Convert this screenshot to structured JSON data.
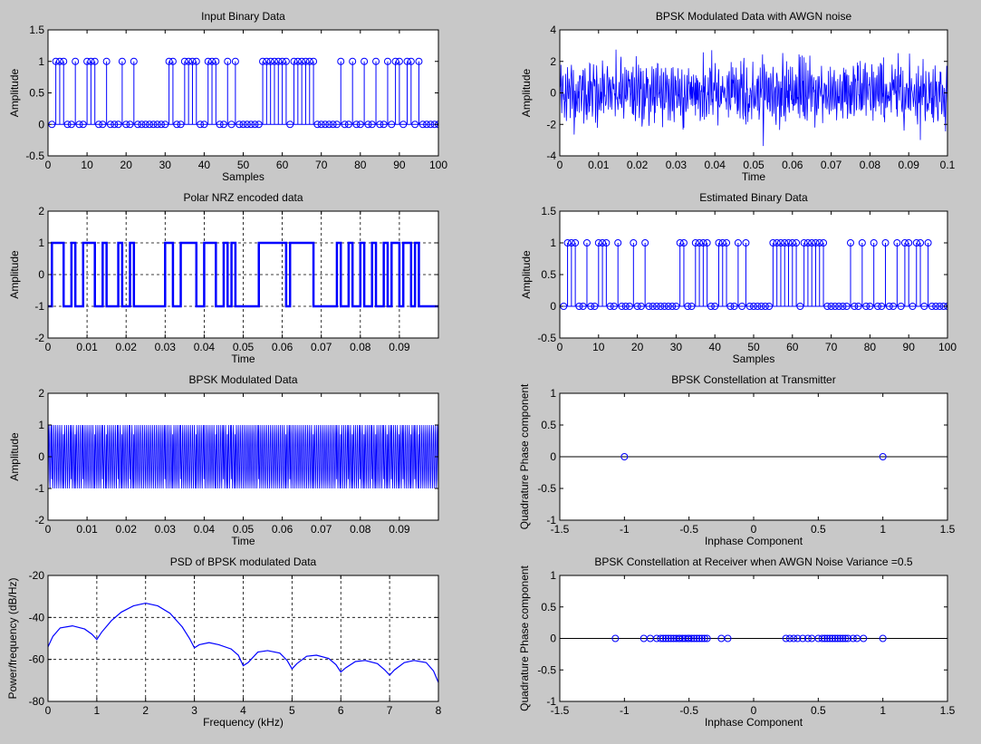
{
  "window": {
    "background": "#c8c8c8"
  },
  "colors": {
    "series": "#0000ff",
    "axes": "#000000",
    "plot_bg": "#ffffff",
    "grid": "#000000"
  },
  "chart_data": [
    {
      "id": "input-binary",
      "type": "stem",
      "title": "Input Binary Data",
      "xlabel": "Samples",
      "ylabel": "Amplitude",
      "xlim": [
        0,
        100
      ],
      "ylim": [
        -0.5,
        1.5
      ],
      "xticks": [
        0,
        10,
        20,
        30,
        40,
        50,
        60,
        70,
        80,
        90,
        100
      ],
      "yticks": [
        -0.5,
        0,
        0.5,
        1,
        1.5
      ],
      "xtick_labels": [
        "0",
        "10",
        "20",
        "30",
        "40",
        "50",
        "60",
        "70",
        "80",
        "90",
        "100"
      ],
      "ytick_labels": [
        "-0.5",
        "0",
        "0.5",
        "1",
        "1.5"
      ],
      "grid": false,
      "baseline": 0,
      "x": [
        1,
        2,
        3,
        4,
        5,
        6,
        7,
        8,
        9,
        10,
        11,
        12,
        13,
        14,
        15,
        16,
        17,
        18,
        19,
        20,
        21,
        22,
        23,
        24,
        25,
        26,
        27,
        28,
        29,
        30,
        31,
        32,
        33,
        34,
        35,
        36,
        37,
        38,
        39,
        40,
        41,
        42,
        43,
        44,
        45,
        46,
        47,
        48,
        49,
        50,
        51,
        52,
        53,
        54,
        55,
        56,
        57,
        58,
        59,
        60,
        61,
        62,
        63,
        64,
        65,
        66,
        67,
        68,
        69,
        70,
        71,
        72,
        73,
        74,
        75,
        76,
        77,
        78,
        79,
        80,
        81,
        82,
        83,
        84,
        85,
        86,
        87,
        88,
        89,
        90,
        91,
        92,
        93,
        94,
        95,
        96,
        97,
        98,
        99,
        100
      ],
      "values": [
        0,
        1,
        1,
        1,
        0,
        0,
        1,
        0,
        0,
        1,
        1,
        1,
        0,
        0,
        1,
        0,
        0,
        0,
        1,
        0,
        0,
        1,
        0,
        0,
        0,
        0,
        0,
        0,
        0,
        0,
        1,
        1,
        0,
        0,
        1,
        1,
        1,
        1,
        0,
        0,
        1,
        1,
        1,
        0,
        0,
        1,
        0,
        1,
        0,
        0,
        0,
        0,
        0,
        0,
        1,
        1,
        1,
        1,
        1,
        1,
        1,
        0,
        1,
        1,
        1,
        1,
        1,
        1,
        0,
        0,
        0,
        0,
        0,
        0,
        1,
        0,
        0,
        1,
        0,
        0,
        1,
        0,
        0,
        1,
        0,
        0,
        1,
        0,
        1,
        1,
        0,
        1,
        1,
        0,
        1,
        0,
        0,
        0,
        0,
        0
      ]
    },
    {
      "id": "bpsk-awgn",
      "type": "line",
      "title": "BPSK Modulated Data with AWGN noise",
      "xlabel": "Time",
      "ylabel": "Amplitude",
      "xlim": [
        0,
        0.1
      ],
      "ylim": [
        -4,
        4
      ],
      "xticks": [
        0,
        0.01,
        0.02,
        0.03,
        0.04,
        0.05,
        0.06,
        0.07,
        0.08,
        0.09,
        0.1
      ],
      "yticks": [
        -4,
        -2,
        0,
        2,
        4
      ],
      "xtick_labels": [
        "0",
        "0.01",
        "0.02",
        "0.03",
        "0.04",
        "0.05",
        "0.06",
        "0.07",
        "0.08",
        "0.09",
        "0.1"
      ],
      "ytick_labels": [
        "-4",
        "-2",
        "0",
        "2",
        "4"
      ],
      "grid": false,
      "signal": {
        "description_of_source": "bpsk",
        "carrier_cycles_per_bit": 2,
        "noise_std": 0.7,
        "samples": 1000
      }
    },
    {
      "id": "polar-nrz",
      "type": "step",
      "title": "Polar NRZ encoded data",
      "xlabel": "Time",
      "ylabel": "Amplitude",
      "xlim": [
        0,
        0.1
      ],
      "ylim": [
        -2,
        2
      ],
      "xticks": [
        0,
        0.01,
        0.02,
        0.03,
        0.04,
        0.05,
        0.06,
        0.07,
        0.08,
        0.09
      ],
      "yticks": [
        -2,
        -1,
        0,
        1,
        2
      ],
      "xtick_labels": [
        "0",
        "0.01",
        "0.02",
        "0.03",
        "0.04",
        "0.05",
        "0.06",
        "0.07",
        "0.08",
        "0.09"
      ],
      "ytick_labels": [
        "-2",
        "-1",
        "0",
        "1",
        "2"
      ],
      "grid": true,
      "bit_period": 0.001
    },
    {
      "id": "estimated-binary",
      "type": "stem",
      "title": "Estimated Binary Data",
      "xlabel": "Samples",
      "ylabel": "Amplitude",
      "xlim": [
        0,
        100
      ],
      "ylim": [
        -0.5,
        1.5
      ],
      "xticks": [
        0,
        10,
        20,
        30,
        40,
        50,
        60,
        70,
        80,
        90,
        100
      ],
      "yticks": [
        -0.5,
        0,
        0.5,
        1,
        1.5
      ],
      "xtick_labels": [
        "0",
        "10",
        "20",
        "30",
        "40",
        "50",
        "60",
        "70",
        "80",
        "90",
        "100"
      ],
      "ytick_labels": [
        "-0.5",
        "0",
        "0.5",
        "1",
        "1.5"
      ],
      "grid": false,
      "baseline": 0
    },
    {
      "id": "bpsk-modulated",
      "type": "line",
      "title": "BPSK Modulated Data",
      "xlabel": "Time",
      "ylabel": "Amplitude",
      "xlim": [
        0,
        0.1
      ],
      "ylim": [
        -2,
        2
      ],
      "xticks": [
        0,
        0.01,
        0.02,
        0.03,
        0.04,
        0.05,
        0.06,
        0.07,
        0.08,
        0.09
      ],
      "yticks": [
        -2,
        -1,
        0,
        1,
        2
      ],
      "xtick_labels": [
        "0",
        "0.01",
        "0.02",
        "0.03",
        "0.04",
        "0.05",
        "0.06",
        "0.07",
        "0.08",
        "0.09"
      ],
      "ytick_labels": [
        "-2",
        "-1",
        "0",
        "1",
        "2"
      ],
      "grid": false,
      "carrier_cycles_per_bit": 2
    },
    {
      "id": "constellation-tx",
      "type": "scatter",
      "title": "BPSK Constellation at Transmitter",
      "xlabel": "Inphase Component",
      "ylabel": "Quadrature Phase component",
      "xlim": [
        -1.5,
        1.5
      ],
      "ylim": [
        -1,
        1
      ],
      "xticks": [
        -1.5,
        -1,
        -0.5,
        0,
        0.5,
        1,
        1.5
      ],
      "yticks": [
        -1,
        -0.5,
        0,
        0.5,
        1
      ],
      "xtick_labels": [
        "-1.5",
        "-1",
        "-0.5",
        "0",
        "0.5",
        "1",
        "1.5"
      ],
      "ytick_labels": [
        "-1",
        "-0.5",
        "0",
        "0.5",
        "1"
      ],
      "grid": false,
      "zero_line": true,
      "points": [
        [
          -1,
          0
        ],
        [
          1,
          0
        ]
      ]
    },
    {
      "id": "psd",
      "type": "line",
      "title": "PSD of BPSK modulated Data",
      "xlabel": "Frequency (kHz)",
      "ylabel": "Power/frequency (dB/Hz)",
      "xlim": [
        0,
        8
      ],
      "ylim": [
        -80,
        -20
      ],
      "xticks": [
        0,
        1,
        2,
        3,
        4,
        5,
        6,
        7,
        8
      ],
      "yticks": [
        -80,
        -60,
        -40,
        -20
      ],
      "xtick_labels": [
        "0",
        "1",
        "2",
        "3",
        "4",
        "5",
        "6",
        "7",
        "8"
      ],
      "ytick_labels": [
        "-80",
        "-60",
        "-40",
        "-20"
      ],
      "grid": true,
      "x": [
        0,
        0.1,
        0.25,
        0.5,
        0.75,
        0.9,
        1.0,
        1.1,
        1.3,
        1.5,
        1.75,
        2.0,
        2.25,
        2.5,
        2.75,
        2.9,
        3.0,
        3.1,
        3.3,
        3.5,
        3.75,
        3.9,
        4.0,
        4.1,
        4.3,
        4.5,
        4.75,
        4.9,
        5.0,
        5.1,
        5.3,
        5.5,
        5.75,
        5.9,
        6.0,
        6.1,
        6.3,
        6.5,
        6.75,
        6.9,
        7.0,
        7.1,
        7.3,
        7.5,
        7.75,
        7.9,
        8.0
      ],
      "y": [
        -54,
        -49,
        -45,
        -44,
        -45.5,
        -48,
        -50.5,
        -47,
        -41.5,
        -37.5,
        -34.5,
        -33.2,
        -34.5,
        -38,
        -44.5,
        -50,
        -54.5,
        -53,
        -52,
        -53,
        -55,
        -58,
        -63,
        -61.5,
        -56.5,
        -55.8,
        -57,
        -60.5,
        -64.5,
        -62,
        -58.5,
        -58,
        -59.5,
        -62.5,
        -66,
        -64,
        -61,
        -60.5,
        -62,
        -65,
        -67.5,
        -65,
        -61.5,
        -60.5,
        -61.5,
        -65.5,
        -71
      ]
    },
    {
      "id": "constellation-rx",
      "type": "scatter",
      "title": "BPSK Constellation at Receiver when AWGN Noise Variance =0.5",
      "xlabel": "Inphase Component",
      "ylabel": "Quadrature Phase component",
      "xlim": [
        -1.5,
        1.5
      ],
      "ylim": [
        -1,
        1
      ],
      "xticks": [
        -1.5,
        -1,
        -0.5,
        0,
        0.5,
        1,
        1.5
      ],
      "yticks": [
        -1,
        -0.5,
        0,
        0.5,
        1
      ],
      "xtick_labels": [
        "-1.5",
        "-1",
        "-0.5",
        "0",
        "0.5",
        "1",
        "1.5"
      ],
      "ytick_labels": [
        "-1",
        "-0.5",
        "0",
        "0.5",
        "1"
      ],
      "grid": false,
      "zero_line": true,
      "points": [
        [
          -1.07,
          0
        ],
        [
          -0.85,
          0
        ],
        [
          -0.8,
          0
        ],
        [
          -0.75,
          0
        ],
        [
          -0.72,
          0
        ],
        [
          -0.7,
          0
        ],
        [
          -0.68,
          0
        ],
        [
          -0.66,
          0
        ],
        [
          -0.64,
          0
        ],
        [
          -0.62,
          0
        ],
        [
          -0.6,
          0
        ],
        [
          -0.58,
          0
        ],
        [
          -0.57,
          0
        ],
        [
          -0.55,
          0
        ],
        [
          -0.53,
          0
        ],
        [
          -0.51,
          0
        ],
        [
          -0.5,
          0
        ],
        [
          -0.48,
          0
        ],
        [
          -0.46,
          0
        ],
        [
          -0.44,
          0
        ],
        [
          -0.42,
          0
        ],
        [
          -0.4,
          0
        ],
        [
          -0.38,
          0
        ],
        [
          -0.36,
          0
        ],
        [
          -0.25,
          0
        ],
        [
          -0.2,
          0
        ],
        [
          0.25,
          0
        ],
        [
          0.28,
          0
        ],
        [
          0.31,
          0
        ],
        [
          0.34,
          0
        ],
        [
          0.38,
          0
        ],
        [
          0.42,
          0
        ],
        [
          0.45,
          0
        ],
        [
          0.5,
          0
        ],
        [
          0.53,
          0
        ],
        [
          0.55,
          0
        ],
        [
          0.57,
          0
        ],
        [
          0.59,
          0
        ],
        [
          0.61,
          0
        ],
        [
          0.63,
          0
        ],
        [
          0.65,
          0
        ],
        [
          0.67,
          0
        ],
        [
          0.69,
          0
        ],
        [
          0.71,
          0
        ],
        [
          0.73,
          0
        ],
        [
          0.77,
          0
        ],
        [
          0.8,
          0
        ],
        [
          0.85,
          0
        ],
        [
          1.0,
          0
        ]
      ]
    }
  ]
}
